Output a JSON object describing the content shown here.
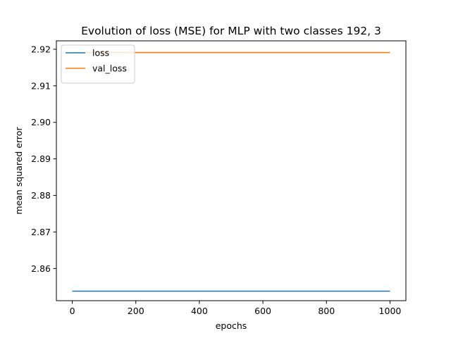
{
  "chart_data": {
    "type": "line",
    "title": "Evolution of loss (MSE) for MLP with two classes 192, 3",
    "xlabel": "epochs",
    "ylabel": "mean squared error",
    "xlim": [
      -50,
      1050
    ],
    "ylim": [
      2.8512,
      2.9223
    ],
    "xticks": [
      0,
      200,
      400,
      600,
      800,
      1000
    ],
    "xtick_labels": [
      "0",
      "200",
      "400",
      "600",
      "800",
      "1000"
    ],
    "yticks": [
      2.86,
      2.87,
      2.88,
      2.89,
      2.9,
      2.91,
      2.92
    ],
    "ytick_labels": [
      "2.86",
      "2.87",
      "2.88",
      "2.89",
      "2.90",
      "2.91",
      "2.92"
    ],
    "grid": false,
    "legend_position": "upper-left",
    "series": [
      {
        "name": "loss",
        "color": "#1f77b4",
        "x": [
          0,
          1000
        ],
        "y": [
          2.8538,
          2.8538
        ]
      },
      {
        "name": "val_loss",
        "color": "#ff7f0e",
        "x": [
          0,
          1000
        ],
        "y": [
          2.9191,
          2.9191
        ]
      }
    ]
  }
}
